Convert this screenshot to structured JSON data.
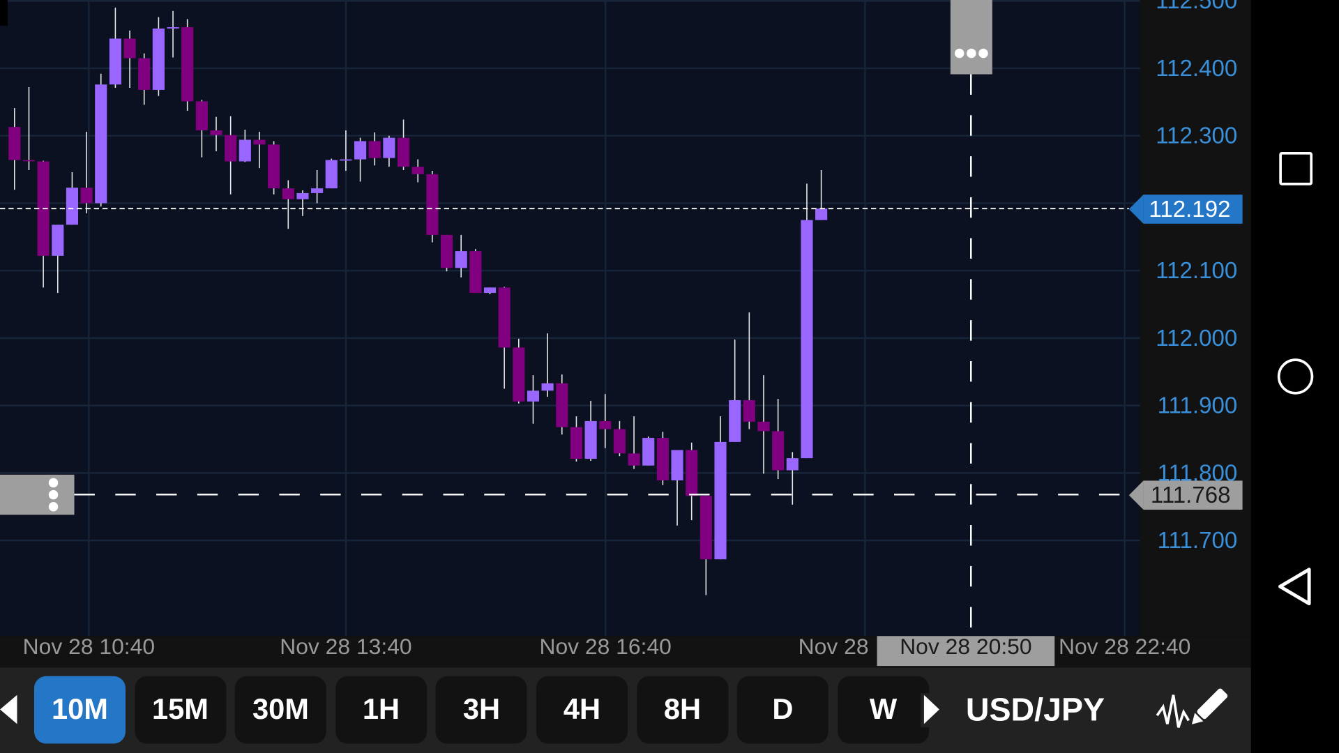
{
  "symbol": "USD/JPY",
  "timeframes": [
    {
      "label": "10M",
      "active": true
    },
    {
      "label": "15M",
      "active": false
    },
    {
      "label": "30M",
      "active": false
    },
    {
      "label": "1H",
      "active": false
    },
    {
      "label": "3H",
      "active": false
    },
    {
      "label": "4H",
      "active": false
    },
    {
      "label": "8H",
      "active": false
    },
    {
      "label": "D",
      "active": false
    },
    {
      "label": "W",
      "active": false
    }
  ],
  "colors": {
    "background": "#0b1120",
    "bullish": "#9966ff",
    "bearish": "#800080",
    "wick": "#e8e8e8",
    "accent": "#2477c6",
    "price_text": "#3a8fd9",
    "crosshair_label": "#9e9e9e"
  },
  "current_price": "112.192",
  "crosshair": {
    "price": "111.768",
    "time": "Nov 28 20:50"
  },
  "chart_data": {
    "type": "candlestick",
    "title": "USD/JPY 10M",
    "interval_minutes": 10,
    "first_candle_time": "Nov 28 09:50",
    "ylim": [
      111.61,
      112.5
    ],
    "y_ticks": [
      "112.500",
      "112.400",
      "112.300",
      "112.200",
      "112.100",
      "112.000",
      "111.900",
      "111.800",
      "111.700"
    ],
    "y_tick_labels": [
      "112.500",
      "112.400",
      "112.300",
      "112.100",
      "112.000",
      "111.900",
      "111.800",
      "111.700"
    ],
    "x_tick_labels": [
      "Nov 28 10:40",
      "Nov 28 13:40",
      "Nov 28 16:40",
      "Nov 28",
      "Nov 28 22:40"
    ],
    "grid": true,
    "candles_ohlc": [
      [
        112.313,
        112.341,
        112.22,
        112.264
      ],
      [
        112.264,
        112.372,
        112.249,
        112.263
      ],
      [
        112.262,
        112.263,
        112.075,
        112.122
      ],
      [
        112.122,
        112.168,
        112.067,
        112.168
      ],
      [
        112.168,
        112.246,
        112.168,
        112.223
      ],
      [
        112.223,
        112.306,
        112.185,
        112.2
      ],
      [
        112.2,
        112.392,
        112.195,
        112.376
      ],
      [
        112.376,
        112.49,
        112.371,
        112.444
      ],
      [
        112.444,
        112.456,
        112.371,
        112.415
      ],
      [
        112.415,
        112.422,
        112.346,
        112.368
      ],
      [
        112.368,
        112.476,
        112.359,
        112.459
      ],
      [
        112.459,
        112.485,
        112.416,
        112.461
      ],
      [
        112.461,
        112.473,
        112.337,
        112.351
      ],
      [
        112.351,
        112.353,
        112.268,
        112.308
      ],
      [
        112.308,
        112.328,
        112.277,
        112.301
      ],
      [
        112.301,
        112.329,
        112.213,
        112.262
      ],
      [
        112.262,
        112.309,
        112.261,
        112.294
      ],
      [
        112.294,
        112.306,
        112.252,
        112.287
      ],
      [
        112.287,
        112.292,
        112.213,
        112.222
      ],
      [
        112.222,
        112.234,
        112.162,
        112.206
      ],
      [
        112.206,
        112.219,
        112.181,
        112.215
      ],
      [
        112.215,
        112.249,
        112.2,
        112.222
      ],
      [
        112.222,
        112.266,
        112.222,
        112.264
      ],
      [
        112.264,
        112.308,
        112.248,
        112.265
      ],
      [
        112.265,
        112.297,
        112.232,
        112.292
      ],
      [
        112.292,
        112.305,
        112.256,
        112.267
      ],
      [
        112.267,
        112.3,
        112.254,
        112.297
      ],
      [
        112.297,
        112.324,
        112.249,
        112.254
      ],
      [
        112.254,
        112.265,
        112.231,
        112.243
      ],
      [
        112.243,
        112.248,
        112.142,
        112.153
      ],
      [
        112.153,
        112.153,
        112.099,
        112.104
      ],
      [
        112.104,
        112.153,
        112.09,
        112.129
      ],
      [
        112.129,
        112.132,
        112.067,
        112.067
      ],
      [
        112.067,
        112.075,
        112.065,
        112.075
      ],
      [
        112.075,
        112.076,
        111.925,
        111.986
      ],
      [
        111.986,
        111.999,
        111.903,
        111.906
      ],
      [
        111.906,
        111.945,
        111.873,
        111.922
      ],
      [
        111.922,
        112.007,
        111.913,
        111.933
      ],
      [
        111.933,
        111.946,
        111.857,
        111.868
      ],
      [
        111.868,
        111.884,
        111.817,
        111.821
      ],
      [
        111.821,
        111.907,
        111.818,
        111.877
      ],
      [
        111.877,
        111.917,
        111.837,
        111.865
      ],
      [
        111.865,
        111.877,
        111.825,
        111.829
      ],
      [
        111.829,
        111.884,
        111.806,
        111.811
      ],
      [
        111.811,
        111.854,
        111.811,
        111.852
      ],
      [
        111.852,
        111.861,
        111.782,
        111.789
      ],
      [
        111.789,
        111.834,
        111.722,
        111.834
      ],
      [
        111.834,
        111.845,
        111.73,
        111.766
      ],
      [
        111.766,
        111.766,
        111.619,
        111.672
      ],
      [
        111.672,
        111.884,
        111.672,
        111.846
      ],
      [
        111.846,
        111.998,
        111.846,
        111.908
      ],
      [
        111.908,
        112.038,
        111.865,
        111.876
      ],
      [
        111.876,
        111.945,
        111.799,
        111.862
      ],
      [
        111.862,
        111.91,
        111.791,
        111.804
      ],
      [
        111.804,
        111.831,
        111.753,
        111.822
      ],
      [
        111.822,
        112.229,
        111.822,
        112.175
      ],
      [
        112.175,
        112.249,
        112.175,
        112.192
      ]
    ]
  }
}
